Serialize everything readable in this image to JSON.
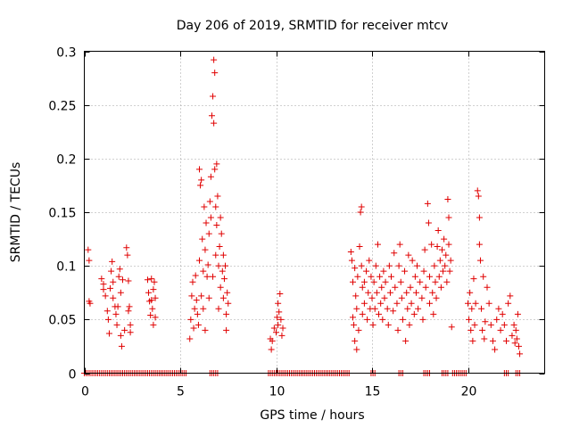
{
  "chart_data": {
    "type": "scatter",
    "title": "Day 206 of 2019, SRMTID for receiver mtcv",
    "xlabel": "GPS time / hours",
    "ylabel": "SRMTID / TECUs",
    "xlim": [
      0,
      24
    ],
    "ylim": [
      0,
      0.3
    ],
    "xticks": [
      0,
      5,
      10,
      15,
      20
    ],
    "xtick_labels": [
      "0",
      "5",
      "10",
      "15",
      "20"
    ],
    "yticks": [
      0,
      0.05,
      0.1,
      0.15,
      0.2,
      0.25,
      0.3
    ],
    "ytick_labels": [
      "0",
      "0.05",
      "0.1",
      "0.15",
      "0.2",
      "0.25",
      "0.3"
    ],
    "grid": true,
    "marker": "+",
    "color": "#e00000",
    "series": [
      {
        "name": "SRMTID",
        "points": [
          [
            0.2,
            0.115
          ],
          [
            0.25,
            0.105
          ],
          [
            0.25,
            0.067
          ],
          [
            0.3,
            0.065
          ],
          [
            0.9,
            0.088
          ],
          [
            1.0,
            0.083
          ],
          [
            1.0,
            0.078
          ],
          [
            1.1,
            0.072
          ],
          [
            1.2,
            0.058
          ],
          [
            1.25,
            0.05
          ],
          [
            1.3,
            0.037
          ],
          [
            1.35,
            0.079
          ],
          [
            1.4,
            0.095
          ],
          [
            1.45,
            0.104
          ],
          [
            1.5,
            0.085
          ],
          [
            1.5,
            0.07
          ],
          [
            1.6,
            0.062
          ],
          [
            1.65,
            0.055
          ],
          [
            1.7,
            0.045
          ],
          [
            1.75,
            0.062
          ],
          [
            1.8,
            0.09
          ],
          [
            1.85,
            0.097
          ],
          [
            1.9,
            0.075
          ],
          [
            1.9,
            0.035
          ],
          [
            1.95,
            0.025
          ],
          [
            2.0,
            0.087
          ],
          [
            2.1,
            0.04
          ],
          [
            2.2,
            0.117
          ],
          [
            2.25,
            0.11
          ],
          [
            2.3,
            0.086
          ],
          [
            2.3,
            0.058
          ],
          [
            2.35,
            0.062
          ],
          [
            2.4,
            0.045
          ],
          [
            2.4,
            0.038
          ],
          [
            3.3,
            0.087
          ],
          [
            3.35,
            0.075
          ],
          [
            3.4,
            0.067
          ],
          [
            3.45,
            0.054
          ],
          [
            3.5,
            0.088
          ],
          [
            3.5,
            0.068
          ],
          [
            3.55,
            0.06
          ],
          [
            3.6,
            0.078
          ],
          [
            3.6,
            0.045
          ],
          [
            3.65,
            0.085
          ],
          [
            3.7,
            0.07
          ],
          [
            3.7,
            0.052
          ],
          [
            5.5,
            0.032
          ],
          [
            5.55,
            0.05
          ],
          [
            5.6,
            0.072
          ],
          [
            5.65,
            0.085
          ],
          [
            5.7,
            0.042
          ],
          [
            5.75,
            0.06
          ],
          [
            5.8,
            0.091
          ],
          [
            5.85,
            0.068
          ],
          [
            5.9,
            0.055
          ],
          [
            5.95,
            0.045
          ],
          [
            6.0,
            0.105
          ],
          [
            6.0,
            0.19
          ],
          [
            6.05,
            0.175
          ],
          [
            6.1,
            0.18
          ],
          [
            6.1,
            0.072
          ],
          [
            6.15,
            0.125
          ],
          [
            6.2,
            0.095
          ],
          [
            6.2,
            0.06
          ],
          [
            6.25,
            0.155
          ],
          [
            6.3,
            0.115
          ],
          [
            6.3,
            0.04
          ],
          [
            6.35,
            0.14
          ],
          [
            6.4,
            0.09
          ],
          [
            6.45,
            0.101
          ],
          [
            6.5,
            0.13
          ],
          [
            6.5,
            0.07
          ],
          [
            6.55,
            0.16
          ],
          [
            6.6,
            0.183
          ],
          [
            6.6,
            0.145
          ],
          [
            6.65,
            0.24
          ],
          [
            6.7,
            0.258
          ],
          [
            6.7,
            0.09
          ],
          [
            6.75,
            0.292
          ],
          [
            6.75,
            0.233
          ],
          [
            6.8,
            0.28
          ],
          [
            6.8,
            0.19
          ],
          [
            6.85,
            0.155
          ],
          [
            6.85,
            0.11
          ],
          [
            6.9,
            0.195
          ],
          [
            6.9,
            0.138
          ],
          [
            6.95,
            0.165
          ],
          [
            7.0,
            0.1
          ],
          [
            7.0,
            0.06
          ],
          [
            7.05,
            0.118
          ],
          [
            7.1,
            0.145
          ],
          [
            7.1,
            0.08
          ],
          [
            7.15,
            0.13
          ],
          [
            7.2,
            0.095
          ],
          [
            7.25,
            0.11
          ],
          [
            7.25,
            0.07
          ],
          [
            7.3,
            0.088
          ],
          [
            7.35,
            0.1
          ],
          [
            7.4,
            0.055
          ],
          [
            7.4,
            0.04
          ],
          [
            7.45,
            0.075
          ],
          [
            7.5,
            0.065
          ],
          [
            9.7,
            0.032
          ],
          [
            9.75,
            0.022
          ],
          [
            9.8,
            0.03
          ],
          [
            9.9,
            0.042
          ],
          [
            10.0,
            0.038
          ],
          [
            10.05,
            0.052
          ],
          [
            10.1,
            0.045
          ],
          [
            10.1,
            0.065
          ],
          [
            10.15,
            0.057
          ],
          [
            10.2,
            0.074
          ],
          [
            10.25,
            0.05
          ],
          [
            10.3,
            0.035
          ],
          [
            10.35,
            0.042
          ],
          [
            13.9,
            0.113
          ],
          [
            13.95,
            0.105
          ],
          [
            14.0,
            0.085
          ],
          [
            14.0,
            0.052
          ],
          [
            14.05,
            0.045
          ],
          [
            14.1,
            0.098
          ],
          [
            14.1,
            0.03
          ],
          [
            14.15,
            0.072
          ],
          [
            14.2,
            0.06
          ],
          [
            14.2,
            0.022
          ],
          [
            14.25,
            0.09
          ],
          [
            14.3,
            0.04
          ],
          [
            14.35,
            0.118
          ],
          [
            14.4,
            0.15
          ],
          [
            14.45,
            0.155
          ],
          [
            14.45,
            0.1
          ],
          [
            14.5,
            0.08
          ],
          [
            14.5,
            0.055
          ],
          [
            14.6,
            0.085
          ],
          [
            14.6,
            0.065
          ],
          [
            14.7,
            0.095
          ],
          [
            14.75,
            0.05
          ],
          [
            14.8,
            0.075
          ],
          [
            14.85,
            0.105
          ],
          [
            14.9,
            0.06
          ],
          [
            14.95,
            0.09
          ],
          [
            15.0,
            0.07
          ],
          [
            15.05,
            0.045
          ],
          [
            15.1,
            0.085
          ],
          [
            15.15,
            0.06
          ],
          [
            15.2,
            0.1
          ],
          [
            15.25,
            0.075
          ],
          [
            15.3,
            0.12
          ],
          [
            15.35,
            0.055
          ],
          [
            15.4,
            0.09
          ],
          [
            15.45,
            0.065
          ],
          [
            15.5,
            0.08
          ],
          [
            15.55,
            0.05
          ],
          [
            15.6,
            0.095
          ],
          [
            15.65,
            0.07
          ],
          [
            15.7,
            0.085
          ],
          [
            15.8,
            0.06
          ],
          [
            15.85,
            0.045
          ],
          [
            15.9,
            0.1
          ],
          [
            15.95,
            0.075
          ],
          [
            16.0,
            0.09
          ],
          [
            16.1,
            0.058
          ],
          [
            16.15,
            0.112
          ],
          [
            16.2,
            0.08
          ],
          [
            16.3,
            0.065
          ],
          [
            16.35,
            0.04
          ],
          [
            16.4,
            0.1
          ],
          [
            16.45,
            0.12
          ],
          [
            16.5,
            0.085
          ],
          [
            16.55,
            0.07
          ],
          [
            16.6,
            0.05
          ],
          [
            16.7,
            0.095
          ],
          [
            16.75,
            0.03
          ],
          [
            16.8,
            0.075
          ],
          [
            16.85,
            0.06
          ],
          [
            16.9,
            0.11
          ],
          [
            16.95,
            0.045
          ],
          [
            17.0,
            0.08
          ],
          [
            17.05,
            0.065
          ],
          [
            17.1,
            0.105
          ],
          [
            17.2,
            0.055
          ],
          [
            17.25,
            0.09
          ],
          [
            17.3,
            0.075
          ],
          [
            17.35,
            0.1
          ],
          [
            17.4,
            0.06
          ],
          [
            17.5,
            0.085
          ],
          [
            17.6,
            0.07
          ],
          [
            17.65,
            0.05
          ],
          [
            17.7,
            0.095
          ],
          [
            17.75,
            0.115
          ],
          [
            17.8,
            0.08
          ],
          [
            17.9,
            0.158
          ],
          [
            17.95,
            0.14
          ],
          [
            18.0,
            0.09
          ],
          [
            18.0,
            0.065
          ],
          [
            18.1,
            0.12
          ],
          [
            18.15,
            0.075
          ],
          [
            18.2,
            0.055
          ],
          [
            18.25,
            0.1
          ],
          [
            18.3,
            0.085
          ],
          [
            18.35,
            0.07
          ],
          [
            18.4,
            0.118
          ],
          [
            18.45,
            0.133
          ],
          [
            18.5,
            0.09
          ],
          [
            18.55,
            0.105
          ],
          [
            18.6,
            0.08
          ],
          [
            18.65,
            0.115
          ],
          [
            18.7,
            0.095
          ],
          [
            18.75,
            0.125
          ],
          [
            18.8,
            0.1
          ],
          [
            18.85,
            0.11
          ],
          [
            18.9,
            0.085
          ],
          [
            18.95,
            0.162
          ],
          [
            19.0,
            0.145
          ],
          [
            19.0,
            0.12
          ],
          [
            19.05,
            0.095
          ],
          [
            19.1,
            0.105
          ],
          [
            19.15,
            0.043
          ],
          [
            20.0,
            0.065
          ],
          [
            20.05,
            0.05
          ],
          [
            20.1,
            0.075
          ],
          [
            20.15,
            0.04
          ],
          [
            20.2,
            0.06
          ],
          [
            20.25,
            0.03
          ],
          [
            20.3,
            0.088
          ],
          [
            20.35,
            0.045
          ],
          [
            20.4,
            0.065
          ],
          [
            20.5,
            0.17
          ],
          [
            20.55,
            0.165
          ],
          [
            20.6,
            0.145
          ],
          [
            20.6,
            0.12
          ],
          [
            20.65,
            0.105
          ],
          [
            20.7,
            0.06
          ],
          [
            20.75,
            0.04
          ],
          [
            20.8,
            0.09
          ],
          [
            20.85,
            0.032
          ],
          [
            20.9,
            0.048
          ],
          [
            21.0,
            0.08
          ],
          [
            21.1,
            0.065
          ],
          [
            21.2,
            0.045
          ],
          [
            21.3,
            0.03
          ],
          [
            21.4,
            0.022
          ],
          [
            21.5,
            0.05
          ],
          [
            21.6,
            0.06
          ],
          [
            21.7,
            0.04
          ],
          [
            21.8,
            0.055
          ],
          [
            21.9,
            0.045
          ],
          [
            22.0,
            0.03
          ],
          [
            22.1,
            0.065
          ],
          [
            22.2,
            0.072
          ],
          [
            22.3,
            0.035
          ],
          [
            22.4,
            0.045
          ],
          [
            22.45,
            0.028
          ],
          [
            22.5,
            0.04
          ],
          [
            22.55,
            0.032
          ],
          [
            22.6,
            0.055
          ],
          [
            22.65,
            0.025
          ],
          [
            22.7,
            0.018
          ]
        ]
      }
    ],
    "zero_band_ranges": [
      [
        0,
        5.3
      ],
      [
        6.55,
        6.95
      ],
      [
        9.6,
        13.8
      ],
      [
        14.95,
        15.2
      ],
      [
        16.4,
        16.65
      ],
      [
        17.7,
        18.0
      ],
      [
        18.65,
        18.95
      ],
      [
        19.2,
        19.95
      ],
      [
        21.9,
        22.1
      ],
      [
        22.5,
        22.7
      ]
    ]
  }
}
